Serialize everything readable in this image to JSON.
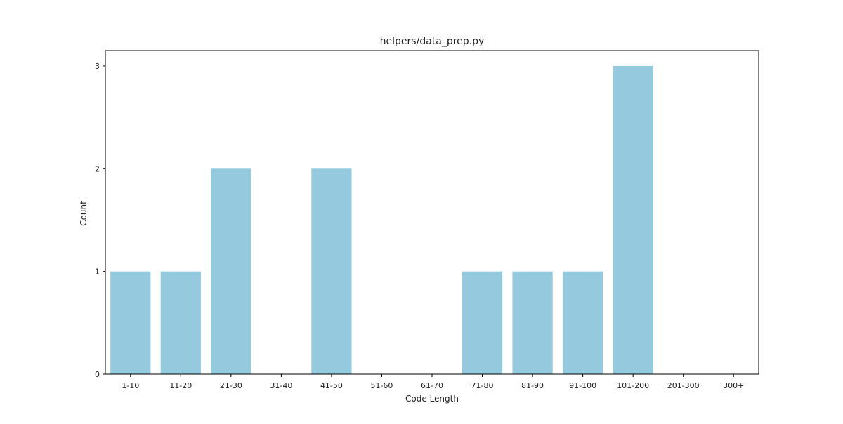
{
  "chart_data": {
    "type": "bar",
    "title": "helpers/data_prep.py",
    "xlabel": "Code Length",
    "ylabel": "Count",
    "categories": [
      "1-10",
      "11-20",
      "21-30",
      "31-40",
      "41-50",
      "51-60",
      "61-70",
      "71-80",
      "81-90",
      "91-100",
      "101-200",
      "201-300",
      "300+"
    ],
    "values": [
      1,
      1,
      2,
      0,
      2,
      0,
      0,
      1,
      1,
      1,
      3,
      0,
      0
    ],
    "ylim": [
      0,
      3.15
    ],
    "yticks": [
      0,
      1,
      2,
      3
    ],
    "grid": false,
    "bar_color": "#95c9de"
  }
}
